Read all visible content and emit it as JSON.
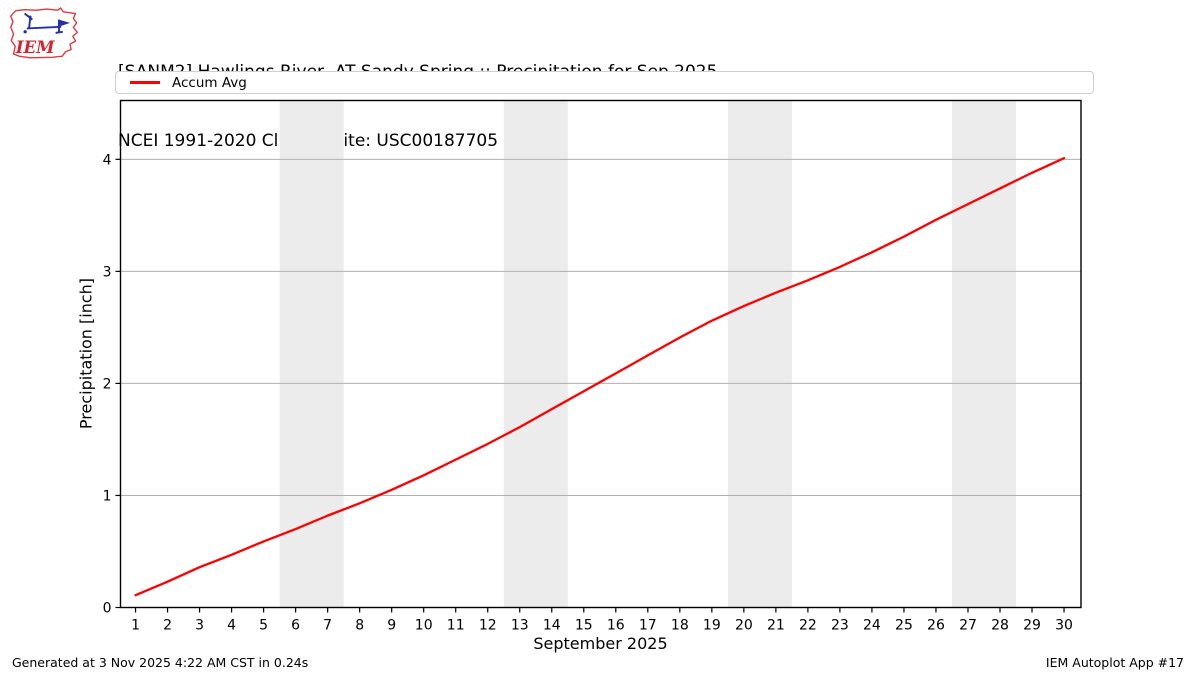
{
  "header": {
    "title_line1": "[SANM2] Hawlings River  AT Sandy Spring :: Precipitation for Sep 2025",
    "title_line2": "NCEI 1991-2020 Climate Site: USC00187705",
    "logo_text": "IEM"
  },
  "legend": {
    "position": "top",
    "items": [
      {
        "label": "Accum Avg",
        "color": "#ff0000"
      }
    ]
  },
  "footer": {
    "left": "Generated at 3 Nov 2025 4:22 AM CST in 0.24s",
    "right": "IEM Autoplot App #17"
  },
  "chart_data": {
    "type": "line",
    "title": "[SANM2] Hawlings River  AT Sandy Spring :: Precipitation for Sep 2025",
    "subtitle": "NCEI 1991-2020 Climate Site: USC00187705",
    "xlabel": "September 2025",
    "ylabel": "Precipitation [inch]",
    "xlim": [
      0.53,
      30.53
    ],
    "ylim": [
      0,
      4.525
    ],
    "xticks": [
      1,
      2,
      3,
      4,
      5,
      6,
      7,
      8,
      9,
      10,
      11,
      12,
      13,
      14,
      15,
      16,
      17,
      18,
      19,
      20,
      21,
      22,
      23,
      24,
      25,
      26,
      27,
      28,
      29,
      30
    ],
    "yticks": [
      0,
      1,
      2,
      3,
      4
    ],
    "grid": "horizontal",
    "grid_color": "#b0b0b0",
    "band_color": "#ececec",
    "weekend_bands": [
      [
        5.5,
        7.5
      ],
      [
        12.5,
        14.5
      ],
      [
        19.5,
        21.5
      ],
      [
        26.5,
        28.5
      ]
    ],
    "legend_position": "top",
    "series": [
      {
        "name": "Accum Avg",
        "color": "#ff0000",
        "x": [
          1,
          2,
          3,
          4,
          5,
          6,
          7,
          8,
          9,
          10,
          11,
          12,
          13,
          14,
          15,
          16,
          17,
          18,
          19,
          20,
          21,
          22,
          23,
          24,
          25,
          26,
          27,
          28,
          29,
          30
        ],
        "y": [
          0.11,
          0.23,
          0.36,
          0.47,
          0.59,
          0.7,
          0.82,
          0.93,
          1.05,
          1.18,
          1.32,
          1.46,
          1.61,
          1.77,
          1.93,
          2.09,
          2.25,
          2.41,
          2.56,
          2.69,
          2.81,
          2.92,
          3.04,
          3.17,
          3.31,
          3.46,
          3.6,
          3.74,
          3.88,
          4.01
        ]
      }
    ]
  }
}
